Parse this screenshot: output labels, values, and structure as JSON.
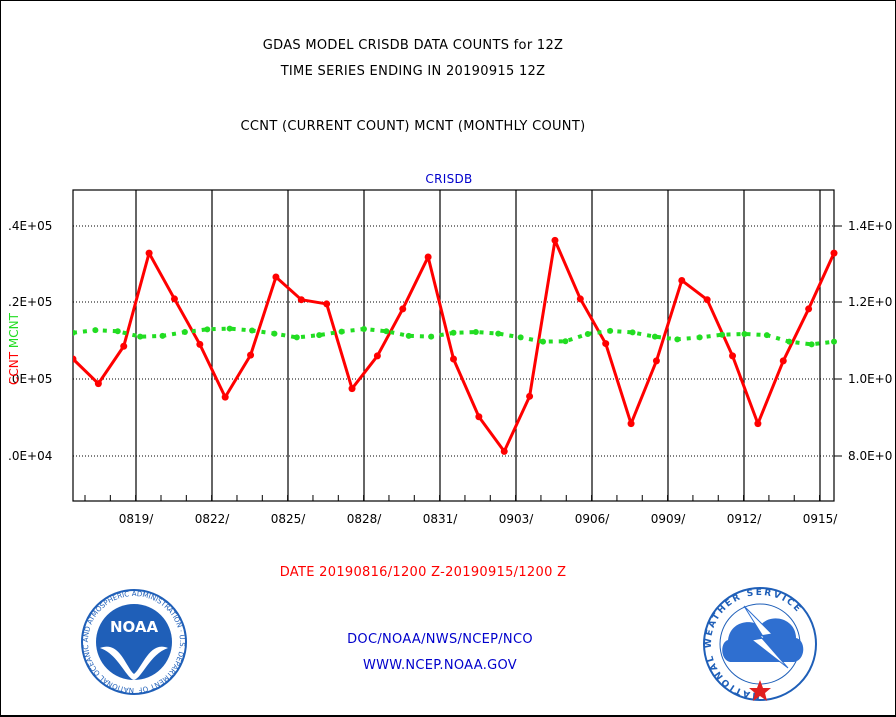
{
  "header": {
    "line1": "GDAS MODEL CRISDB DATA COUNTS for 12Z",
    "line2": "TIME SERIES ENDING IN 20190915 12Z",
    "line3": "CCNT (CURRENT COUNT) MCNT (MONTHLY COUNT)"
  },
  "footer": {
    "date_range": "DATE 20190816/1200 Z-20190915/1200 Z",
    "agency": "DOC/NOAA/NWS/NCEP/NCO",
    "url": "WWW.NCEP.NOAA.GOV"
  },
  "logos": {
    "left_text": "NOAA",
    "left_ring": "NATIONAL OCEANIC AND ATMOSPHERIC ADMINISTRATION · U.S. DEPARTMENT OF COMMERCE ·",
    "right_ring": "NATIONAL WEATHER SERVICE",
    "noaa_blue": "#1f5fb8",
    "nws_blue": "#2f6fd0",
    "nws_red": "#e02020"
  },
  "colors": {
    "ccnt": "#ff0000",
    "mcnt": "#22dd22",
    "panel_label": "#0000cc"
  },
  "chart_data": {
    "type": "line",
    "panel_label": "CRISDB",
    "y_left_label_parts": [
      "CCNT",
      "MCNT"
    ],
    "y_left_ticks": [
      ".4E+05",
      ".2E+05",
      ".0E+05",
      ".0E+04"
    ],
    "y_right_ticks": [
      "1.4E+0",
      "1.2E+0",
      "1.0E+0",
      "8.0E+0"
    ],
    "x_tick_labels": [
      "0819/",
      "0822/",
      "0825/",
      "0828/",
      "0831/",
      "0903/",
      "0906/",
      "0909/",
      "0912/",
      "0915/"
    ],
    "series": [
      {
        "name": "CCNT",
        "axis": "left",
        "values": [
          10.52,
          9.88,
          10.85,
          13.27,
          12.08,
          10.9,
          9.53,
          10.62,
          12.65,
          12.06,
          11.95,
          9.75,
          10.6,
          11.82,
          13.17,
          10.52,
          9.02,
          8.12,
          9.55,
          13.6,
          12.08,
          10.92,
          8.84,
          10.47,
          12.56,
          12.06,
          10.6,
          8.84,
          10.47,
          11.82,
          13.27
        ]
      },
      {
        "name": "MCNT",
        "axis": "left",
        "values": [
          11.2,
          11.27,
          11.24,
          11.1,
          11.12,
          11.22,
          11.29,
          11.31,
          11.26,
          11.18,
          11.08,
          11.14,
          11.23,
          11.3,
          11.24,
          11.12,
          11.1,
          11.2,
          11.22,
          11.18,
          11.08,
          10.97,
          10.98,
          11.17,
          11.25,
          11.21,
          11.1,
          11.03,
          11.08,
          11.15,
          11.17,
          11.14,
          10.97,
          10.9,
          10.97
        ]
      }
    ],
    "grid": true
  }
}
